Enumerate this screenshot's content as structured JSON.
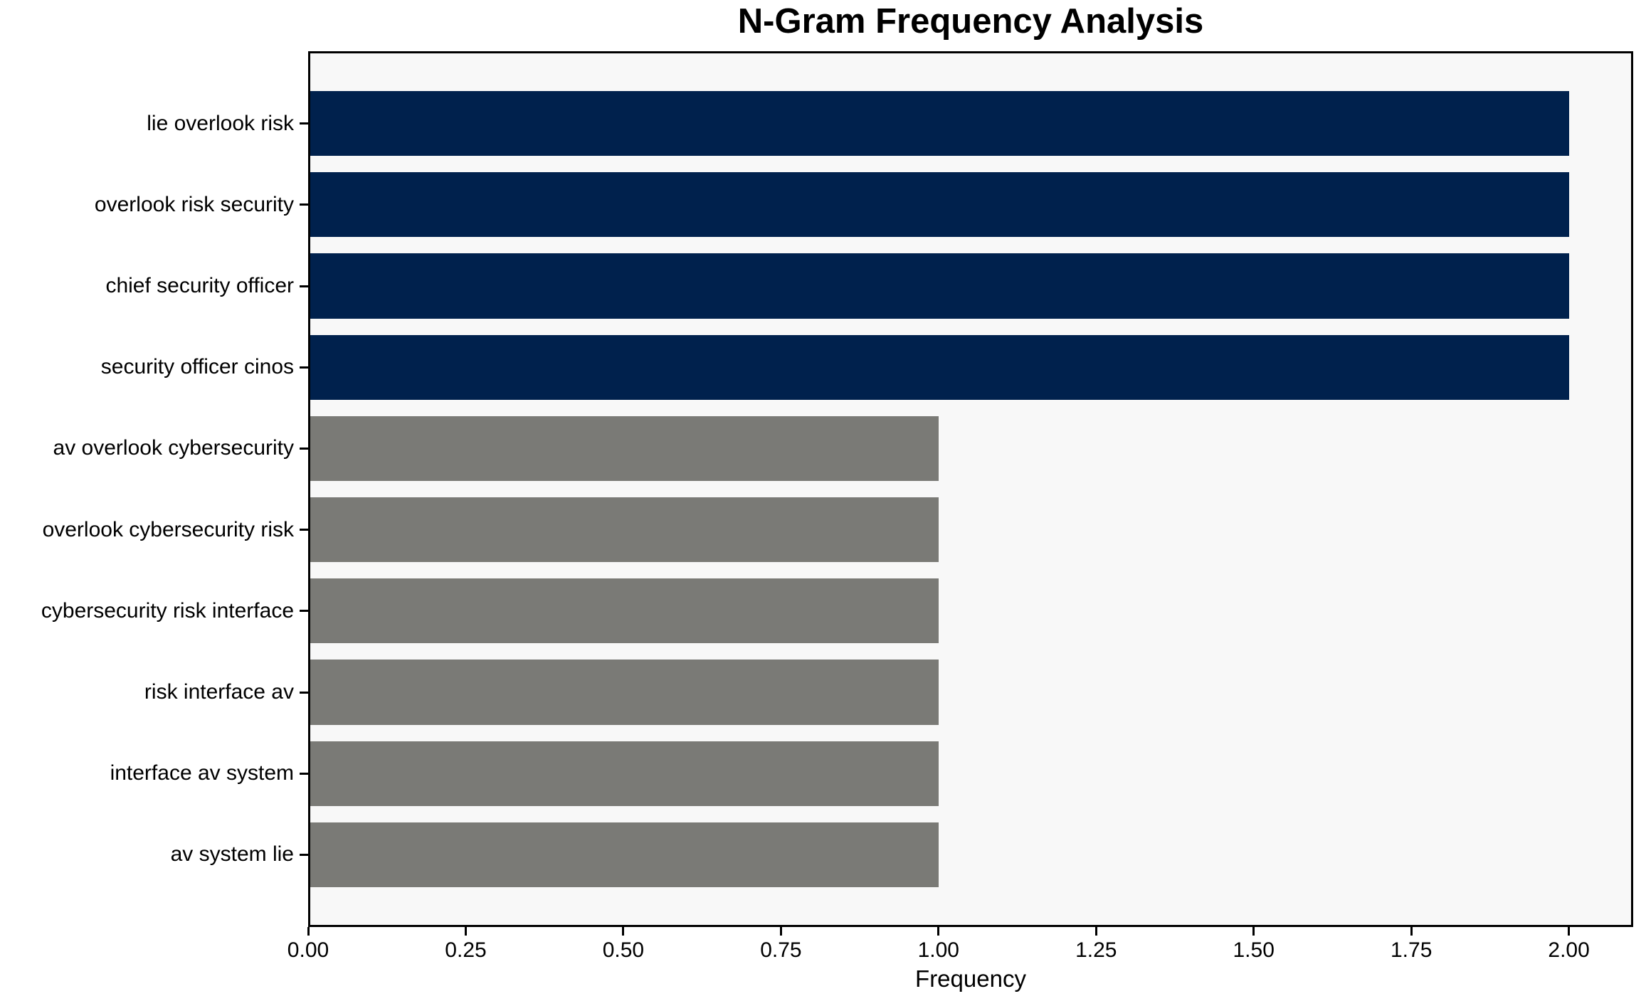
{
  "chart_data": {
    "type": "bar",
    "orientation": "horizontal",
    "title": "N-Gram Frequency Analysis",
    "xlabel": "Frequency",
    "ylabel": "",
    "categories": [
      "lie overlook risk",
      "overlook risk security",
      "chief security officer",
      "security officer cinos",
      "av overlook cybersecurity",
      "overlook cybersecurity risk",
      "cybersecurity risk interface",
      "risk interface av",
      "interface av system",
      "av system lie"
    ],
    "values": [
      2,
      2,
      2,
      2,
      1,
      1,
      1,
      1,
      1,
      1
    ],
    "bar_colors": [
      "#00214D",
      "#00214D",
      "#00214D",
      "#00214D",
      "#7A7A76",
      "#7A7A76",
      "#7A7A76",
      "#7A7A76",
      "#7A7A76",
      "#7A7A76"
    ],
    "x_ticks": [
      "0.00",
      "0.25",
      "0.50",
      "0.75",
      "1.00",
      "1.25",
      "1.50",
      "1.75",
      "2.00"
    ],
    "x_tick_values": [
      0,
      0.25,
      0.5,
      0.75,
      1.0,
      1.25,
      1.5,
      1.75,
      2.0
    ],
    "xlim": [
      0,
      2.102
    ],
    "bar_height_fraction": 0.8,
    "grid": false,
    "legend": null,
    "plot_background": "#F8F8F8",
    "figure_background": "#FFFFFF",
    "highlight_color": "#00214D",
    "default_color": "#7A7A76",
    "spine_color": "#000000"
  }
}
